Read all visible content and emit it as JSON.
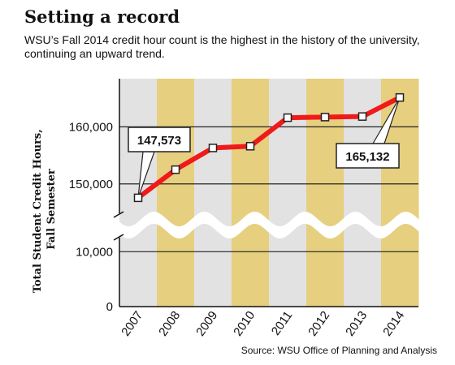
{
  "header": {
    "title": "Setting a record",
    "subtitle": "WSU’s Fall 2014 credit hour count is the highest in the history of the university, continuing an upward trend."
  },
  "footer": {
    "source": "Source: WSU Office of Planning and Analysis"
  },
  "colors": {
    "band_light": "#e2e2e2",
    "band_gold": "#e6cf7e",
    "line": "#f01a1a",
    "marker_fill": "#ffffff",
    "marker_stroke": "#222222"
  },
  "chart_data": {
    "type": "line",
    "title": "Setting a record",
    "ylabel_lines": [
      "Total Student Credit Hours,",
      "Fall Semester"
    ],
    "xlabel": "",
    "broken_axis": true,
    "grid": true,
    "categories": [
      "2007",
      "2008",
      "2009",
      "2010",
      "2011",
      "2012",
      "2013",
      "2014"
    ],
    "series": [
      {
        "values": [
          147573,
          152500,
          156300,
          156600,
          161600,
          161700,
          161800,
          165132
        ]
      }
    ],
    "upper_segment": {
      "ylim": [
        145000,
        168000
      ],
      "ticks": [
        150000,
        160000
      ],
      "tick_labels": [
        "150,000",
        "160,000"
      ]
    },
    "lower_segment": {
      "ylim": [
        0,
        13000
      ],
      "ticks": [
        0,
        10000
      ],
      "tick_labels": [
        "0",
        "10,000"
      ]
    },
    "annotations": [
      {
        "category": "2007",
        "value": 147573,
        "text": "147,573"
      },
      {
        "category": "2014",
        "value": 165132,
        "text": "165,132"
      }
    ]
  }
}
